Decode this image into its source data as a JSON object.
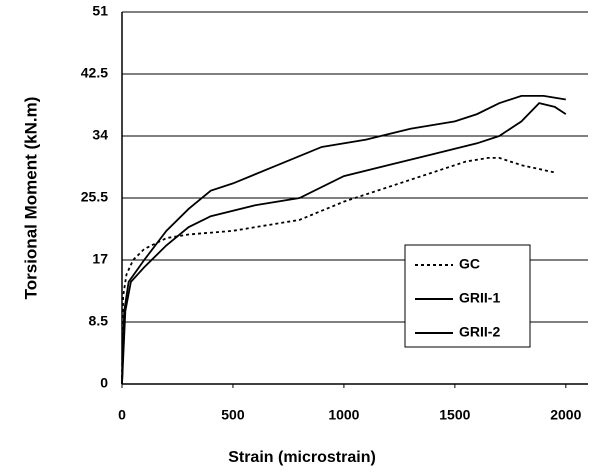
{
  "chart_data": {
    "type": "line",
    "xlabel": "Strain  (microstrain)",
    "ylabel": "Torsional Moment (kN.m)",
    "xlim": [
      0,
      2100
    ],
    "xticks": [
      0,
      500,
      1000,
      1500,
      2000
    ],
    "ylim": [
      0,
      51
    ],
    "yticks": [
      0,
      8.5,
      17,
      25.5,
      34,
      42.5,
      51
    ],
    "grid": true,
    "legend": "lower right",
    "series": [
      {
        "name": "GC",
        "color": "#000000",
        "style": "dotted",
        "x": [
          0,
          5,
          20,
          50,
          100,
          200,
          300,
          500,
          800,
          1000,
          1200,
          1400,
          1550,
          1650,
          1700,
          1800,
          1950
        ],
        "values": [
          0,
          12,
          15,
          17,
          18.5,
          20,
          20.5,
          21,
          22.5,
          25,
          27,
          29,
          30.5,
          31,
          31,
          30,
          29
        ]
      },
      {
        "name": "GRII-1",
        "color": "#000000",
        "style": "solid",
        "x": [
          0,
          15,
          40,
          100,
          200,
          300,
          400,
          600,
          800,
          1000,
          1200,
          1400,
          1600,
          1700,
          1800,
          1880,
          1950,
          2000
        ],
        "values": [
          0,
          10,
          14,
          16,
          19,
          21.5,
          23,
          24.5,
          25.5,
          28.5,
          30,
          31.5,
          33,
          34,
          36,
          38.5,
          38,
          37
        ]
      },
      {
        "name": "GRII-2",
        "color": "#000000",
        "style": "solid",
        "x": [
          0,
          10,
          30,
          100,
          200,
          300,
          400,
          500,
          700,
          900,
          1100,
          1300,
          1500,
          1600,
          1700,
          1800,
          1900,
          2000
        ],
        "values": [
          0,
          10,
          14,
          17,
          21,
          24,
          26.5,
          27.5,
          30,
          32.5,
          33.5,
          35,
          36,
          37,
          38.5,
          39.5,
          39.5,
          39
        ]
      }
    ]
  }
}
